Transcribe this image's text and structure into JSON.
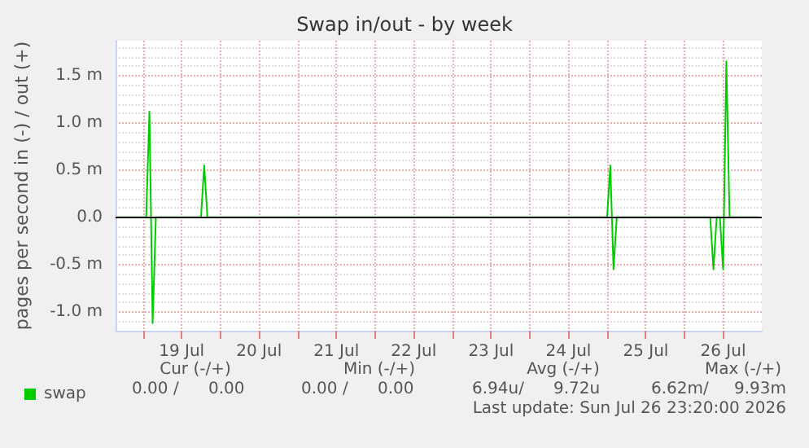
{
  "chart_data": {
    "type": "line",
    "title": "Swap in/out - by week",
    "ylabel": "pages per second in (-) / out (+)",
    "series": [
      {
        "name": "swap",
        "color": "#00cc00",
        "x": [
          "2026-07-18T16:00",
          "2026-07-19T01:00",
          "2026-07-19T02:00",
          "2026-07-19T03:00",
          "2026-07-19T04:00",
          "2026-07-19T18:00",
          "2026-07-19T19:00",
          "2026-07-19T20:00",
          "2026-07-25T00:00",
          "2026-07-25T01:00",
          "2026-07-25T02:00",
          "2026-07-25T03:00",
          "2026-07-26T08:00",
          "2026-07-26T09:00",
          "2026-07-26T10:00",
          "2026-07-26T11:00",
          "2026-07-26T12:00",
          "2026-07-26T13:00",
          "2026-07-26T14:00",
          "2026-07-26T23:00"
        ],
        "values": [
          0,
          0,
          1.12,
          -1.12,
          0,
          0,
          0.55,
          0,
          0,
          0.55,
          -0.55,
          0,
          0,
          -0.55,
          0,
          0,
          -0.55,
          1.65,
          0,
          0
        ]
      }
    ],
    "xlim": [
      "2026-07-18T15:30",
      "2026-07-27T00:00"
    ],
    "xticks": [
      {
        "value": "2026-07-19T00:00",
        "label": null
      },
      {
        "value": "2026-07-19T12:00",
        "label": "19 Jul"
      },
      {
        "value": "2026-07-20T00:00",
        "label": null
      },
      {
        "value": "2026-07-20T12:00",
        "label": "20 Jul"
      },
      {
        "value": "2026-07-21T00:00",
        "label": null
      },
      {
        "value": "2026-07-21T12:00",
        "label": "21 Jul"
      },
      {
        "value": "2026-07-22T00:00",
        "label": null
      },
      {
        "value": "2026-07-22T12:00",
        "label": "22 Jul"
      },
      {
        "value": "2026-07-23T00:00",
        "label": null
      },
      {
        "value": "2026-07-23T12:00",
        "label": "23 Jul"
      },
      {
        "value": "2026-07-24T00:00",
        "label": null
      },
      {
        "value": "2026-07-24T12:00",
        "label": "24 Jul"
      },
      {
        "value": "2026-07-25T00:00",
        "label": null
      },
      {
        "value": "2026-07-25T12:00",
        "label": "25 Jul"
      },
      {
        "value": "2026-07-26T00:00",
        "label": null
      },
      {
        "value": "2026-07-26T12:00",
        "label": "26 Jul"
      }
    ],
    "ylim": [
      -1.2,
      1.87
    ],
    "yticks": [
      {
        "value": -1.0,
        "label": "-1.0 m"
      },
      {
        "value": -0.5,
        "label": "-0.5 m"
      },
      {
        "value": 0,
        "label": "0.0"
      },
      {
        "value": 0.5,
        "label": "0.5 m"
      },
      {
        "value": 1.0,
        "label": "1.0 m"
      },
      {
        "value": 1.5,
        "label": "1.5 m"
      }
    ],
    "ref_lines": [
      {
        "axis": "y",
        "value": 0,
        "color": "#000000"
      }
    ],
    "grid": true,
    "legend": "bottom left",
    "marker": "none",
    "line_style": "solid",
    "annotations": [
      "Cur (-/+)",
      "Min (-/+)",
      "Avg (-/+)",
      "Max (-/+)",
      "0.00 /",
      "0.00",
      "0.00 /",
      "0.00",
      "6.94u/",
      "9.72u",
      "6.62m/",
      "9.93m",
      "Last update: Sun Jul 26 23:20:00 2026"
    ]
  }
}
